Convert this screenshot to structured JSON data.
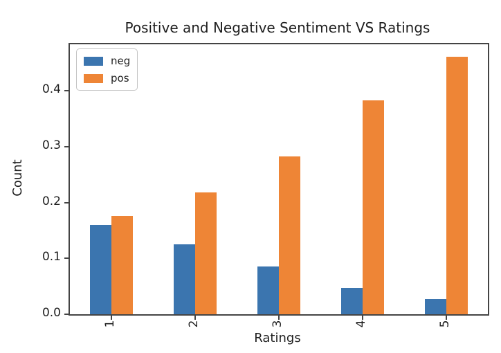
{
  "chart_data": {
    "type": "bar",
    "title": "Positive and Negative Sentiment VS Ratings",
    "xlabel": "Ratings",
    "ylabel": "Count",
    "categories": [
      "1",
      "2",
      "3",
      "4",
      "5"
    ],
    "series": [
      {
        "name": "neg",
        "color": "#3b75af",
        "values": [
          0.16,
          0.125,
          0.085,
          0.047,
          0.027
        ]
      },
      {
        "name": "pos",
        "color": "#ee8536",
        "values": [
          0.176,
          0.218,
          0.283,
          0.383,
          0.461
        ]
      }
    ],
    "ylim": [
      0,
      0.483
    ],
    "yticks": [
      0.0,
      0.1,
      0.2,
      0.3,
      0.4
    ],
    "ytick_labels": [
      "0.0",
      "0.1",
      "0.2",
      "0.3",
      "0.4"
    ],
    "xtick_rotation": 90,
    "grid": false,
    "legend_position": "upper left"
  }
}
